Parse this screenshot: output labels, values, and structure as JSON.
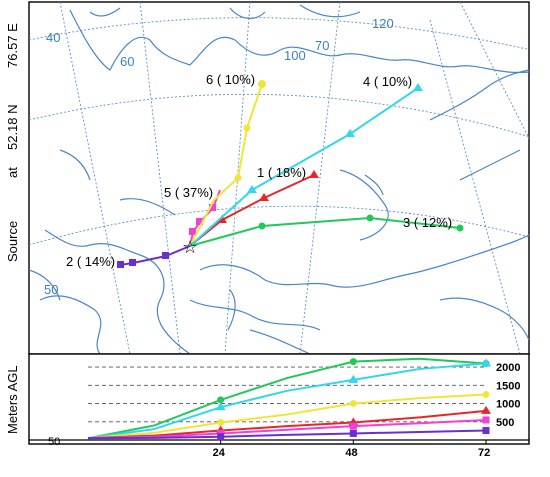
{
  "side_title": {
    "source": "Source",
    "at": "at",
    "lat": "52.18 N",
    "lon": "76.57 E"
  },
  "graticule_labels": [
    "40",
    "60",
    "120",
    "100",
    "70",
    "50"
  ],
  "trajectories": [
    {
      "label": "1 ( 18%)",
      "color": "#e8262a",
      "marker": "triangle"
    },
    {
      "label": "2 ( 14%)",
      "color": "#6a2fd0",
      "marker": "square"
    },
    {
      "label": "3 ( 12%)",
      "color": "#22c95a",
      "marker": "circle"
    },
    {
      "label": "4 ( 10%)",
      "color": "#33d6ec",
      "marker": "triangle"
    },
    {
      "label": "5 ( 37%)",
      "color": "#f23fd5",
      "marker": "square"
    },
    {
      "label": "6 ( 10%)",
      "color": "#f0e63a",
      "marker": "circle"
    }
  ],
  "chart_data": {
    "type": "line",
    "ylabel": "Meters AGL",
    "x_ticks": [
      "24",
      "48",
      "72"
    ],
    "y_ticks": [
      "500",
      "1000",
      "1500",
      "2000"
    ],
    "y_baseline_label": "50",
    "x": [
      0,
      12,
      24,
      36,
      48,
      60,
      72
    ],
    "series": [
      {
        "name": "3",
        "color": "#22c95a",
        "values": [
          50,
          400,
          1100,
          1700,
          2150,
          2230,
          2100
        ]
      },
      {
        "name": "4",
        "color": "#33d6ec",
        "values": [
          50,
          300,
          900,
          1350,
          1650,
          1950,
          2100
        ]
      },
      {
        "name": "6",
        "color": "#f0e63a",
        "values": [
          50,
          200,
          480,
          700,
          1000,
          1150,
          1250
        ]
      },
      {
        "name": "1",
        "color": "#e8262a",
        "values": [
          50,
          120,
          260,
          380,
          480,
          620,
          800
        ]
      },
      {
        "name": "5",
        "color": "#f23fd5",
        "values": [
          50,
          90,
          180,
          280,
          380,
          460,
          550
        ]
      },
      {
        "name": "2",
        "color": "#6a2fd0",
        "values": [
          50,
          60,
          90,
          140,
          180,
          220,
          260
        ]
      }
    ]
  }
}
